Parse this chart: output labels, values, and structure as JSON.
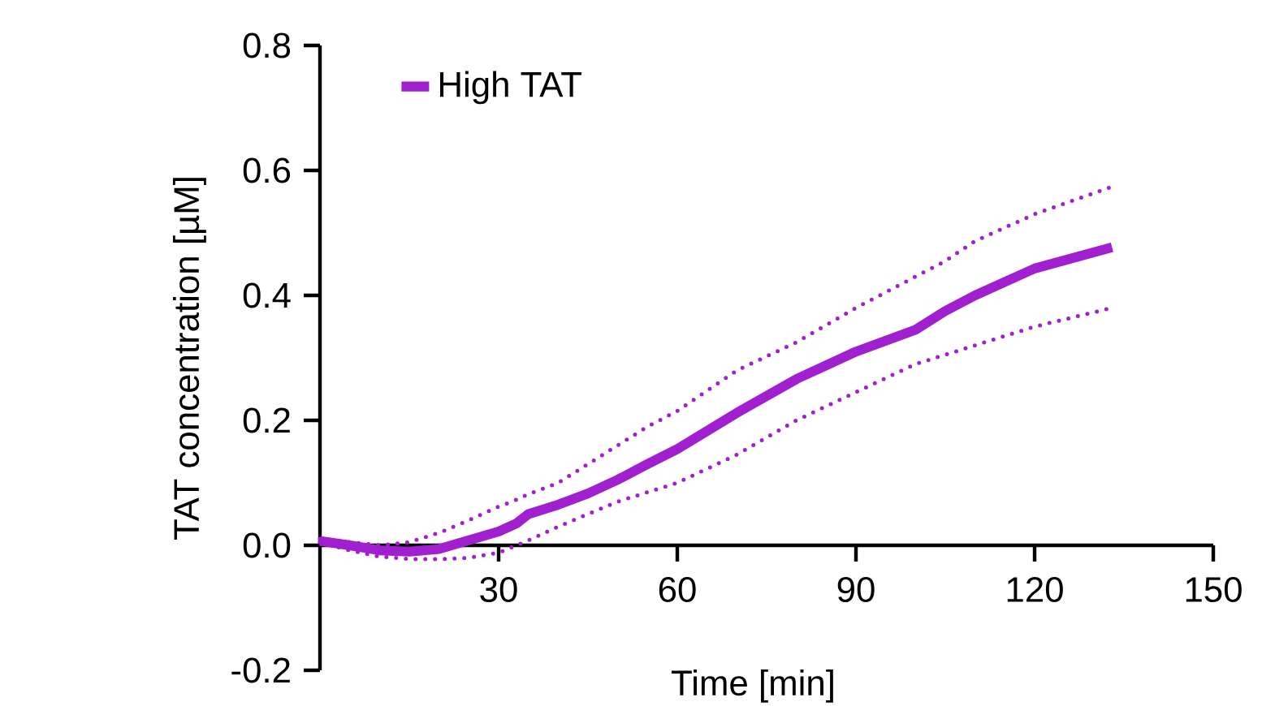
{
  "chart_data": {
    "type": "line",
    "xlabel": "Time [min]",
    "ylabel": "TAT concentration [µM]",
    "xlim": [
      0,
      150
    ],
    "xticks": [
      30,
      60,
      90,
      120,
      150
    ],
    "ylim": [
      -0.2,
      0.8
    ],
    "yticks": [
      {
        "value": -0.2,
        "label": "-0.2"
      },
      {
        "value": 0,
        "label": "0.0"
      },
      {
        "value": 0.2,
        "label": "0.2"
      },
      {
        "value": 0.4,
        "label": "0.4"
      },
      {
        "value": 0.6,
        "label": "0.6"
      },
      {
        "value": 0.8,
        "label": "0.8"
      }
    ],
    "legend": "top left",
    "x": [
      0,
      5,
      10,
      15,
      20,
      25,
      30,
      33,
      35,
      40,
      45,
      50,
      55,
      60,
      70,
      80,
      90,
      100,
      105,
      110,
      120,
      133
    ],
    "series": [
      {
        "color": "#a020d0",
        "line_style": "dotted",
        "values": [
          0.005,
          -0.008,
          -0.018,
          -0.022,
          -0.022,
          -0.02,
          -0.012,
          0.0,
          0.008,
          0.03,
          0.05,
          0.07,
          0.085,
          0.1,
          0.145,
          0.2,
          0.245,
          0.29,
          0.305,
          0.32,
          0.35,
          0.38
        ]
      },
      {
        "color": "#a020d0",
        "line_style": "dotted",
        "values": [
          0.01,
          0.005,
          0.0,
          0.005,
          0.02,
          0.04,
          0.062,
          0.073,
          0.082,
          0.1,
          0.13,
          0.16,
          0.19,
          0.215,
          0.28,
          0.325,
          0.38,
          0.43,
          0.455,
          0.487,
          0.53,
          0.574
        ]
      },
      {
        "name": "High TAT",
        "color": "#a020d0",
        "line_style": "solid",
        "values": [
          0.007,
          0.0,
          -0.008,
          -0.01,
          -0.006,
          0.008,
          0.022,
          0.035,
          0.05,
          0.065,
          0.083,
          0.105,
          0.13,
          0.154,
          0.212,
          0.266,
          0.31,
          0.345,
          0.375,
          0.4,
          0.443,
          0.477
        ]
      }
    ]
  }
}
